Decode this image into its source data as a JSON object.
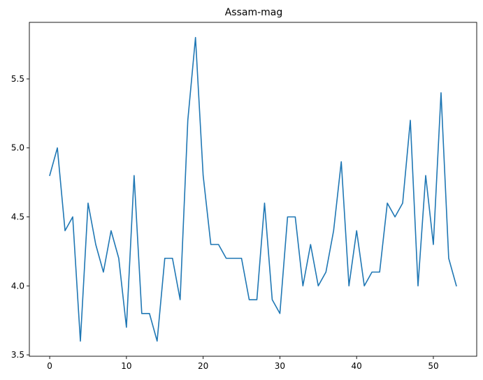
{
  "chart_data": {
    "type": "line",
    "title": "Assam-mag",
    "xlabel": "",
    "ylabel": "",
    "xlim": [
      -2.65,
      55.65
    ],
    "ylim": [
      3.49,
      5.91
    ],
    "xticks": [
      0,
      10,
      20,
      30,
      40,
      50
    ],
    "xtick_labels": [
      "0",
      "10",
      "20",
      "30",
      "40",
      "50"
    ],
    "yticks": [
      3.5,
      4.0,
      4.5,
      5.0,
      5.5
    ],
    "ytick_labels": [
      "3.5",
      "4.0",
      "4.5",
      "5.0",
      "5.5"
    ],
    "grid": false,
    "legend": "none",
    "series": [
      {
        "color": "#1f77b4",
        "x": [
          0,
          1,
          2,
          3,
          4,
          5,
          6,
          7,
          8,
          9,
          10,
          11,
          12,
          13,
          14,
          15,
          16,
          17,
          18,
          19,
          20,
          21,
          22,
          23,
          24,
          25,
          26,
          27,
          28,
          29,
          30,
          31,
          32,
          33,
          34,
          35,
          36,
          37,
          38,
          39,
          40,
          41,
          42,
          43,
          44,
          45,
          46,
          47,
          48,
          49,
          50,
          51,
          52,
          53
        ],
        "values": [
          4.8,
          5.0,
          4.4,
          4.5,
          3.6,
          4.6,
          4.3,
          4.1,
          4.4,
          4.2,
          3.7,
          4.8,
          3.8,
          3.8,
          3.6,
          4.2,
          4.2,
          3.9,
          5.2,
          5.8,
          4.8,
          4.3,
          4.3,
          4.2,
          4.2,
          4.2,
          3.9,
          3.9,
          4.6,
          3.9,
          3.8,
          4.5,
          4.5,
          4.0,
          4.3,
          4.0,
          4.1,
          4.4,
          4.9,
          4.0,
          4.4,
          4.0,
          4.1,
          4.1,
          4.6,
          4.5,
          4.6,
          5.2,
          4.0,
          4.8,
          4.3,
          5.4,
          4.2,
          4.0
        ]
      }
    ]
  }
}
